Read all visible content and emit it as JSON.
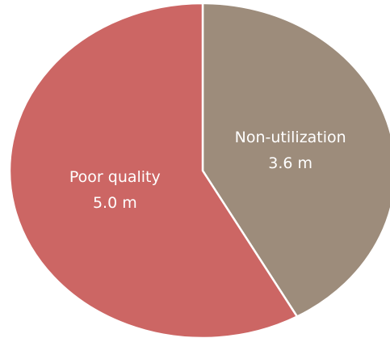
{
  "chart_data": {
    "type": "pie",
    "categories": [
      "Non-utilization",
      "Poor quality"
    ],
    "values": [
      3.6,
      5.0
    ],
    "value_labels": [
      "3.6 m",
      "5.0 m"
    ],
    "colors": [
      "#9d8c7b",
      "#cc6664"
    ]
  }
}
